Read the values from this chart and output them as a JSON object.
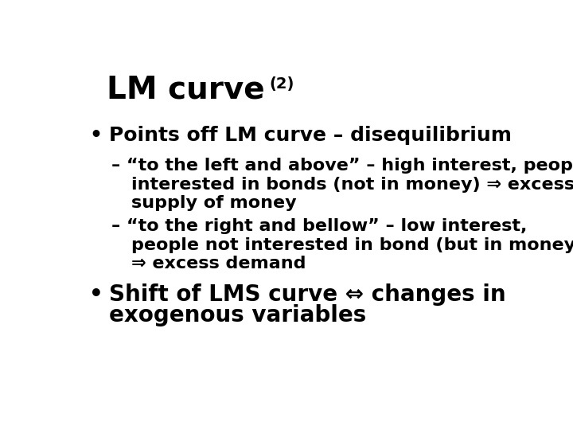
{
  "title": "LM curve",
  "title_superscript": "(2)",
  "background_color": "#ffffff",
  "text_color": "#000000",
  "bullet1": "Points off LM curve – disequilibrium",
  "sub1_line1": "– “to the left and above” – high interest, people",
  "sub1_line2": "interested in bonds (not in money) ⇒ excess",
  "sub1_line3": "supply of money",
  "sub2_line1": "– “to the right and bellow” – low interest,",
  "sub2_line2": "people not interested in bond (but in money)",
  "sub2_line3": "⇒ excess demand",
  "bullet2_line1": "Shift of LMS curve ⇔ changes in",
  "bullet2_line2": "exogenous variables",
  "title_fontsize": 28,
  "title_super_fontsize": 14,
  "bullet_fontsize": 18,
  "sub_fontsize": 16,
  "bullet2_fontsize": 20
}
